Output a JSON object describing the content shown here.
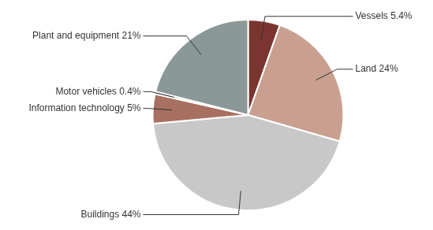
{
  "chart_data": {
    "type": "pie",
    "values": [
      5.4,
      24,
      44,
      5,
      0.4,
      21
    ],
    "value_labels": [
      "Vessels 5.4%",
      "Land 24%",
      "Buildings 44%",
      "Information technology 5%",
      "Motor vehicles 0.4%",
      "Plant and equipment 21%"
    ],
    "colors": [
      "#7a3530",
      "#c9a090",
      "#c8c8c8",
      "#a87060",
      "#5a4040",
      "#8a9898"
    ],
    "data_labels": true
  }
}
